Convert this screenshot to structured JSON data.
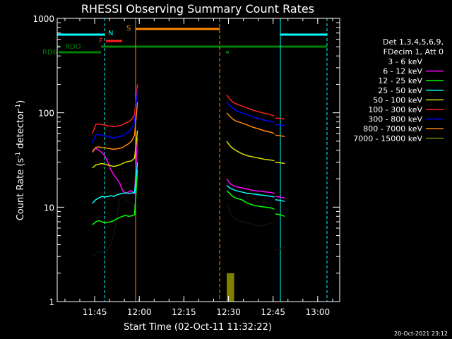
{
  "chart_data": {
    "type": "line",
    "title": "RHESSI Observing Summary Count Rates",
    "xlabel": "Start Time (02-Oct-11 11:32:22)",
    "ylabel_main": "Count Rate (s",
    "ylabel_sup1": "-1",
    "ylabel_mid": " detector",
    "ylabel_sup2": "-1",
    "ylabel_end": ")",
    "yscale": "log",
    "ylim": [
      1,
      1000
    ],
    "xlim_minutes": [
      0,
      95
    ],
    "x_ticks": [
      {
        "label": "11:45",
        "m": 12.6
      },
      {
        "label": "12:00",
        "m": 27.6
      },
      {
        "label": "12:15",
        "m": 42.6
      },
      {
        "label": "12:30",
        "m": 57.6
      },
      {
        "label": "12:45",
        "m": 72.6
      },
      {
        "label": "13:00",
        "m": 87.6
      }
    ],
    "y_ticks": [
      {
        "label": "1",
        "v": 1
      },
      {
        "label": "10",
        "v": 10
      },
      {
        "label": "100",
        "v": 100
      },
      {
        "label": "1000",
        "v": 1000
      }
    ],
    "legend_title_1": "Det 1,3,4,5,6,9,",
    "legend_title_2": "FDecim 1, Att 0",
    "footer_date": "20-Oct-2021 23:12",
    "series": [
      {
        "name": "3 - 6 keV",
        "color": "#000000",
        "seg1": [
          [
            11.8,
            3.0
          ],
          [
            13,
            3.2
          ],
          [
            14,
            3.4
          ],
          [
            15,
            3.3
          ],
          [
            16,
            3.5
          ],
          [
            17,
            3.6
          ],
          [
            18,
            4.0
          ],
          [
            19,
            5.0
          ],
          [
            20,
            8.0
          ],
          [
            21,
            12.0
          ],
          [
            22,
            13.0
          ],
          [
            23,
            12.0
          ],
          [
            24,
            11.5
          ],
          [
            25,
            11.0
          ],
          [
            26,
            10.0
          ],
          [
            27,
            15.0
          ]
        ],
        "seg2": [
          [
            57.0,
            11.0
          ],
          [
            58,
            9.0
          ],
          [
            59,
            8.0
          ],
          [
            60,
            7.5
          ],
          [
            62,
            7.0
          ],
          [
            64,
            6.8
          ],
          [
            66,
            6.5
          ],
          [
            68,
            6.3
          ],
          [
            70,
            6.5
          ],
          [
            72,
            6.8
          ],
          [
            73,
            7.0
          ]
        ],
        "seg3": [
          [
            73.3,
            3.5
          ],
          [
            75,
            3.6
          ],
          [
            76.5,
            3.8
          ]
        ]
      },
      {
        "name": "6 - 12 keV",
        "color": "#ff00ff",
        "seg1": [
          [
            11.8,
            40.0
          ],
          [
            13,
            42.0
          ],
          [
            14,
            40.0
          ],
          [
            15,
            38.0
          ],
          [
            16,
            35.0
          ],
          [
            17,
            30.0
          ],
          [
            18,
            25.0
          ],
          [
            19,
            22.0
          ],
          [
            20,
            20.0
          ],
          [
            21,
            18.0
          ],
          [
            22,
            15.0
          ],
          [
            23,
            14.0
          ],
          [
            24,
            14.5
          ],
          [
            25,
            15.0
          ],
          [
            26,
            14.0
          ],
          [
            27,
            55.0
          ]
        ],
        "seg2": [
          [
            57.0,
            20.0
          ],
          [
            58,
            18.0
          ],
          [
            59,
            17.0
          ],
          [
            60,
            16.5
          ],
          [
            62,
            16.0
          ],
          [
            64,
            15.5
          ],
          [
            66,
            15.0
          ],
          [
            68,
            14.8
          ],
          [
            70,
            14.5
          ],
          [
            72,
            14.3
          ],
          [
            73,
            14.0
          ]
        ],
        "seg3": [
          [
            73.3,
            13.0
          ],
          [
            75,
            12.8
          ],
          [
            76.5,
            12.5
          ]
        ]
      },
      {
        "name": "12 - 25 keV",
        "color": "#00ff00",
        "seg1": [
          [
            11.8,
            6.5
          ],
          [
            13,
            7.0
          ],
          [
            14,
            7.2
          ],
          [
            15,
            7.0
          ],
          [
            16,
            6.8
          ],
          [
            17,
            6.9
          ],
          [
            18,
            7.0
          ],
          [
            19,
            7.2
          ],
          [
            20,
            7.5
          ],
          [
            21,
            7.8
          ],
          [
            22,
            8.0
          ],
          [
            23,
            8.2
          ],
          [
            24,
            8.0
          ],
          [
            25,
            8.1
          ],
          [
            26,
            8.3
          ],
          [
            27,
            25.0
          ]
        ],
        "seg2": [
          [
            57.0,
            15.0
          ],
          [
            58,
            14.0
          ],
          [
            59,
            13.0
          ],
          [
            60,
            12.5
          ],
          [
            62,
            12.0
          ],
          [
            64,
            11.0
          ],
          [
            66,
            10.5
          ],
          [
            68,
            10.2
          ],
          [
            70,
            10.0
          ],
          [
            72,
            9.8
          ],
          [
            73,
            9.5
          ]
        ],
        "seg3": [
          [
            73.3,
            8.5
          ],
          [
            75,
            8.3
          ],
          [
            76.5,
            8.0
          ]
        ]
      },
      {
        "name": "25 - 50 keV",
        "color": "#00ffff",
        "seg1": [
          [
            11.8,
            11.0
          ],
          [
            13,
            12.0
          ],
          [
            14,
            12.5
          ],
          [
            15,
            13.0
          ],
          [
            16,
            12.8
          ],
          [
            17,
            13.0
          ],
          [
            18,
            13.2
          ],
          [
            19,
            13.0
          ],
          [
            20,
            13.5
          ],
          [
            21,
            13.8
          ],
          [
            22,
            14.0
          ],
          [
            23,
            14.2
          ],
          [
            24,
            14.0
          ],
          [
            25,
            14.1
          ],
          [
            26,
            14.3
          ],
          [
            27,
            30.0
          ]
        ],
        "seg2": [
          [
            57.0,
            17.0
          ],
          [
            58,
            16.0
          ],
          [
            59,
            15.5
          ],
          [
            60,
            15.0
          ],
          [
            62,
            14.5
          ],
          [
            64,
            14.0
          ],
          [
            66,
            13.8
          ],
          [
            68,
            13.5
          ],
          [
            70,
            13.3
          ],
          [
            72,
            13.0
          ],
          [
            73,
            12.8
          ]
        ],
        "seg3": [
          [
            73.3,
            12.0
          ],
          [
            75,
            11.8
          ],
          [
            76.5,
            11.5
          ]
        ]
      },
      {
        "name": "50 - 100 keV",
        "color": "#dddd00",
        "seg1": [
          [
            11.8,
            26.0
          ],
          [
            13,
            28.0
          ],
          [
            14,
            28.5
          ],
          [
            15,
            29.0
          ],
          [
            16,
            28.5
          ],
          [
            17,
            28.0
          ],
          [
            18,
            27.5
          ],
          [
            19,
            27.0
          ],
          [
            20,
            27.5
          ],
          [
            21,
            28.0
          ],
          [
            22,
            29.0
          ],
          [
            23,
            30.0
          ],
          [
            24,
            30.5
          ],
          [
            25,
            31.0
          ],
          [
            26,
            33.0
          ],
          [
            27,
            65.0
          ]
        ],
        "seg2": [
          [
            57.0,
            50.0
          ],
          [
            58,
            45.0
          ],
          [
            59,
            42.0
          ],
          [
            60,
            40.0
          ],
          [
            62,
            37.0
          ],
          [
            64,
            35.0
          ],
          [
            66,
            34.0
          ],
          [
            68,
            33.0
          ],
          [
            70,
            32.0
          ],
          [
            72,
            31.5
          ],
          [
            73,
            31.0
          ]
        ],
        "seg3": [
          [
            73.3,
            30.0
          ],
          [
            75,
            29.5
          ],
          [
            76.5,
            29.0
          ]
        ]
      },
      {
        "name": "100 - 300 keV",
        "color": "#ff2222",
        "seg1": [
          [
            11.8,
            60.0
          ],
          [
            13,
            75.0
          ],
          [
            14,
            76.0
          ],
          [
            15,
            75.0
          ],
          [
            16,
            74.0
          ],
          [
            17,
            73.0
          ],
          [
            18,
            72.0
          ],
          [
            19,
            71.0
          ],
          [
            20,
            72.0
          ],
          [
            21,
            73.0
          ],
          [
            22,
            75.0
          ],
          [
            23,
            78.0
          ],
          [
            24,
            80.0
          ],
          [
            25,
            85.0
          ],
          [
            26,
            95.0
          ],
          [
            27,
            200.0
          ]
        ],
        "seg2": [
          [
            57.0,
            155.0
          ],
          [
            58,
            140.0
          ],
          [
            59,
            130.0
          ],
          [
            60,
            125.0
          ],
          [
            62,
            118.0
          ],
          [
            64,
            112.0
          ],
          [
            66,
            106.0
          ],
          [
            68,
            102.0
          ],
          [
            70,
            98.0
          ],
          [
            72,
            95.0
          ],
          [
            73,
            92.0
          ]
        ],
        "seg3": [
          [
            73.3,
            88.0
          ],
          [
            75,
            87.0
          ],
          [
            76.5,
            86.0
          ]
        ]
      },
      {
        "name": "300 - 800 keV",
        "color": "#0000ff",
        "seg1": [
          [
            11.8,
            48.0
          ],
          [
            13,
            58.0
          ],
          [
            14,
            59.0
          ],
          [
            15,
            58.0
          ],
          [
            16,
            57.0
          ],
          [
            17,
            56.0
          ],
          [
            18,
            55.0
          ],
          [
            19,
            54.0
          ],
          [
            20,
            55.0
          ],
          [
            21,
            56.0
          ],
          [
            22,
            57.0
          ],
          [
            23,
            60.0
          ],
          [
            24,
            63.0
          ],
          [
            25,
            68.0
          ],
          [
            26,
            80.0
          ],
          [
            27,
            180.0
          ]
        ],
        "seg2": [
          [
            57.0,
            130.0
          ],
          [
            58,
            120.0
          ],
          [
            59,
            112.0
          ],
          [
            60,
            106.0
          ],
          [
            62,
            100.0
          ],
          [
            64,
            95.0
          ],
          [
            66,
            90.0
          ],
          [
            68,
            86.0
          ],
          [
            70,
            83.0
          ],
          [
            72,
            81.0
          ],
          [
            73,
            79.0
          ]
        ],
        "seg3": [
          [
            73.3,
            75.0
          ],
          [
            75,
            74.0
          ],
          [
            76.5,
            73.0
          ]
        ]
      },
      {
        "name": "800 - 7000 keV",
        "color": "#ff8800",
        "seg1": [
          [
            11.8,
            38.0
          ],
          [
            13,
            43.0
          ],
          [
            14,
            43.5
          ],
          [
            15,
            43.0
          ],
          [
            16,
            42.5
          ],
          [
            17,
            42.0
          ],
          [
            18,
            41.5
          ],
          [
            19,
            41.0
          ],
          [
            20,
            41.5
          ],
          [
            21,
            42.0
          ],
          [
            22,
            43.0
          ],
          [
            23,
            45.0
          ],
          [
            24,
            47.0
          ],
          [
            25,
            50.0
          ],
          [
            26,
            58.0
          ],
          [
            27,
            130.0
          ]
        ],
        "seg2": [
          [
            57.0,
            100.0
          ],
          [
            58,
            92.0
          ],
          [
            59,
            86.0
          ],
          [
            60,
            82.0
          ],
          [
            62,
            78.0
          ],
          [
            64,
            74.0
          ],
          [
            66,
            70.0
          ],
          [
            68,
            67.0
          ],
          [
            70,
            64.0
          ],
          [
            72,
            62.0
          ],
          [
            73,
            60.0
          ]
        ],
        "seg3": [
          [
            73.3,
            58.0
          ],
          [
            75,
            57.0
          ],
          [
            76.5,
            56.0
          ]
        ]
      },
      {
        "name": "7000 - 15000 keV",
        "color": "#808000",
        "seg1": [],
        "seg2": [
          [
            57.0,
            2.0
          ],
          [
            59.5,
            2.0
          ]
        ],
        "seg3": []
      }
    ],
    "bar_labels": [
      {
        "text": "RDO",
        "color": "#008000"
      },
      {
        "text": "RD6",
        "color": "#008000"
      },
      {
        "text": "N",
        "color": "#00ffff"
      },
      {
        "text": "F",
        "color": "#ff2222"
      },
      {
        "text": "S",
        "color": "#ff8800"
      }
    ]
  }
}
